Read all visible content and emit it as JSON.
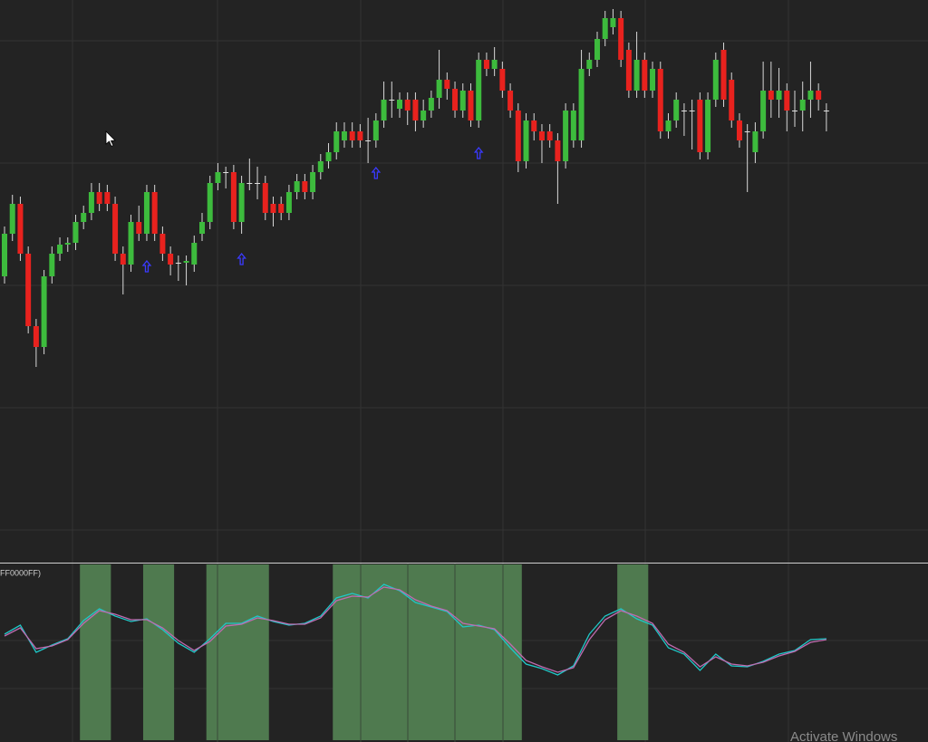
{
  "chart_data": {
    "type": "candlestick",
    "ylim": [
      0,
      620
    ],
    "candles": [
      [
        315,
        370,
        307,
        362
      ],
      [
        362,
        405,
        354,
        395
      ],
      [
        395,
        403,
        332,
        340
      ],
      [
        340,
        348,
        252,
        260
      ],
      [
        260,
        268,
        215,
        237
      ],
      [
        237,
        322,
        229,
        315
      ],
      [
        315,
        348,
        307,
        340
      ],
      [
        340,
        358,
        332,
        350
      ],
      [
        350,
        358,
        342,
        352
      ],
      [
        352,
        383,
        344,
        375
      ],
      [
        375,
        393,
        367,
        385
      ],
      [
        385,
        418,
        377,
        408
      ],
      [
        408,
        418,
        387,
        395
      ],
      [
        408,
        416,
        387,
        395
      ],
      [
        395,
        403,
        332,
        340
      ],
      [
        340,
        348,
        295,
        328
      ],
      [
        328,
        383,
        320,
        375
      ],
      [
        375,
        393,
        354,
        362
      ],
      [
        362,
        416,
        354,
        408
      ],
      [
        408,
        416,
        354,
        362
      ],
      [
        362,
        370,
        332,
        340
      ],
      [
        340,
        348,
        316,
        328
      ],
      [
        330,
        338,
        310,
        330
      ],
      [
        330,
        338,
        305,
        332
      ],
      [
        328,
        360,
        320,
        352
      ],
      [
        362,
        385,
        354,
        375
      ],
      [
        375,
        426,
        367,
        418
      ],
      [
        418,
        440,
        410,
        430
      ],
      [
        430,
        436,
        412,
        430
      ],
      [
        430,
        438,
        367,
        375
      ],
      [
        375,
        426,
        362,
        418
      ],
      [
        418,
        445,
        410,
        418
      ],
      [
        418,
        436,
        400,
        418
      ],
      [
        418,
        426,
        377,
        385
      ],
      [
        395,
        403,
        370,
        385
      ],
      [
        395,
        403,
        377,
        385
      ],
      [
        385,
        416,
        377,
        408
      ],
      [
        408,
        428,
        400,
        420
      ],
      [
        420,
        428,
        400,
        408
      ],
      [
        408,
        438,
        400,
        430
      ],
      [
        430,
        450,
        422,
        442
      ],
      [
        442,
        462,
        434,
        452
      ],
      [
        452,
        485,
        444,
        475
      ],
      [
        465,
        485,
        457,
        475
      ],
      [
        475,
        485,
        457,
        465
      ],
      [
        475,
        483,
        457,
        465
      ],
      [
        465,
        490,
        440,
        465
      ],
      [
        465,
        495,
        457,
        487
      ],
      [
        487,
        530,
        479,
        510
      ],
      [
        510,
        530,
        490,
        510
      ],
      [
        500,
        518,
        490,
        510
      ],
      [
        510,
        518,
        482,
        498
      ],
      [
        510,
        518,
        475,
        487
      ],
      [
        487,
        510,
        479,
        498
      ],
      [
        498,
        520,
        490,
        512
      ],
      [
        512,
        565,
        500,
        532
      ],
      [
        532,
        540,
        510,
        522
      ],
      [
        522,
        530,
        490,
        498
      ],
      [
        498,
        528,
        490,
        520
      ],
      [
        520,
        528,
        480,
        487
      ],
      [
        487,
        562,
        479,
        554
      ],
      [
        554,
        562,
        536,
        544
      ],
      [
        544,
        568,
        536,
        554
      ],
      [
        544,
        552,
        512,
        520
      ],
      [
        520,
        528,
        490,
        498
      ],
      [
        498,
        506,
        430,
        442
      ],
      [
        442,
        495,
        434,
        487
      ],
      [
        487,
        495,
        465,
        475
      ],
      [
        475,
        483,
        440,
        465
      ],
      [
        475,
        483,
        457,
        465
      ],
      [
        465,
        473,
        395,
        442
      ],
      [
        442,
        506,
        434,
        498
      ],
      [
        465,
        506,
        457,
        498
      ],
      [
        465,
        565,
        457,
        544
      ],
      [
        544,
        562,
        536,
        554
      ],
      [
        554,
        585,
        546,
        577
      ],
      [
        577,
        608,
        569,
        600
      ],
      [
        590,
        610,
        582,
        600
      ],
      [
        600,
        608,
        546,
        554
      ],
      [
        565,
        573,
        512,
        520
      ],
      [
        520,
        585,
        512,
        554
      ],
      [
        554,
        562,
        512,
        520
      ],
      [
        520,
        552,
        512,
        544
      ],
      [
        544,
        552,
        467,
        475
      ],
      [
        475,
        495,
        467,
        487
      ],
      [
        487,
        518,
        479,
        510
      ],
      [
        498,
        506,
        470,
        498
      ],
      [
        498,
        510,
        455,
        498
      ],
      [
        510,
        518,
        444,
        452
      ],
      [
        452,
        518,
        444,
        510
      ],
      [
        510,
        562,
        502,
        554
      ],
      [
        565,
        573,
        502,
        510
      ],
      [
        532,
        540,
        479,
        487
      ],
      [
        487,
        495,
        457,
        465
      ],
      [
        475,
        483,
        408,
        475
      ],
      [
        452,
        485,
        440,
        475
      ],
      [
        475,
        552,
        467,
        520
      ],
      [
        520,
        552,
        490,
        510
      ],
      [
        510,
        545,
        490,
        520
      ],
      [
        520,
        528,
        475,
        498
      ],
      [
        498,
        520,
        480,
        498
      ],
      [
        498,
        530,
        475,
        510
      ],
      [
        510,
        552,
        490,
        520
      ],
      [
        520,
        528,
        498,
        510
      ],
      [
        498,
        506,
        475,
        498
      ]
    ],
    "up_color": "#3dbb3d",
    "down_color": "#e8221e",
    "signals": [
      18,
      30,
      47,
      60
    ],
    "signal_color": "#3a3aff",
    "indicator": {
      "label": "FF0000FF)",
      "ylim": [
        0,
        197
      ],
      "zones": [
        [
          10,
          13
        ],
        [
          18,
          21
        ],
        [
          26,
          33
        ],
        [
          42,
          65
        ],
        [
          78,
          81
        ]
      ],
      "zone_color": "#4f7a4f",
      "series": [
        {
          "color": "#1fc8c8",
          "values": [
            119,
            129,
            99,
            107,
            114,
            134,
            147,
            139,
            133,
            136,
            124,
            109,
            99,
            114,
            131,
            131,
            139,
            133,
            129,
            131,
            139,
            159,
            164,
            159,
            174,
            167,
            154,
            149,
            144,
            127,
            129,
            124,
            104,
            86,
            81,
            74,
            84,
            119,
            139,
            147,
            136,
            129,
            104,
            97,
            79,
            97,
            84,
            83,
            89,
            97,
            101,
            113,
            114
          ]
        },
        {
          "color": "#c06bb0",
          "values": [
            117,
            126,
            103,
            106,
            113,
            131,
            145,
            141,
            135,
            135,
            126,
            112,
            101,
            111,
            128,
            130,
            137,
            134,
            130,
            130,
            137,
            156,
            161,
            160,
            171,
            168,
            157,
            150,
            145,
            131,
            128,
            125,
            108,
            90,
            83,
            77,
            82,
            113,
            135,
            145,
            139,
            131,
            108,
            99,
            83,
            94,
            86,
            84,
            88,
            95,
            100,
            110,
            113
          ]
        }
      ]
    }
  },
  "watermark": "Activate Windows"
}
